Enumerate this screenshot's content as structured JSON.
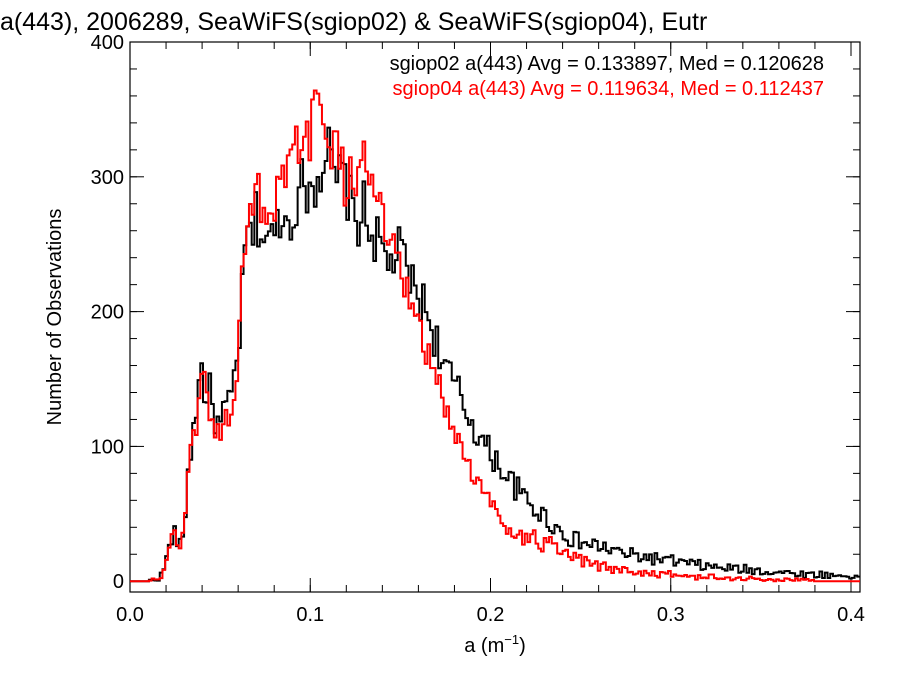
{
  "chart_data": {
    "type": "line",
    "title": "a(443), 2006289, SeaWiFS(sgiop02) & SeaWiFS(sgiop04), Eutr",
    "xlabel": {
      "base": "a (m",
      "sup": "−1",
      "close": ")"
    },
    "ylabel": "Number of Observations",
    "xlim": [
      0.0,
      0.405
    ],
    "ylim": [
      -8,
      400
    ],
    "x_ticks": [
      0.0,
      0.1,
      0.2,
      0.3,
      0.4
    ],
    "x_tick_labels": [
      "0.0",
      "0.1",
      "0.2",
      "0.3",
      "0.4"
    ],
    "y_ticks": [
      0,
      100,
      200,
      300,
      400
    ],
    "y_tick_labels": [
      "0",
      "100",
      "200",
      "300",
      "400"
    ],
    "grid": false,
    "legend_position": "top-right",
    "bin_width": 0.0015,
    "series": [
      {
        "color": "#000000",
        "legend_text": "sgiop02 a(443) Avg = 0.133897, Med = 0.120628",
        "points": [
          [
            0.0,
            0
          ],
          [
            0.01,
            0
          ],
          [
            0.016,
            2
          ],
          [
            0.018,
            6
          ],
          [
            0.02,
            16
          ],
          [
            0.022,
            25
          ],
          [
            0.024,
            38
          ],
          [
            0.026,
            30
          ],
          [
            0.028,
            25
          ],
          [
            0.03,
            40
          ],
          [
            0.032,
            75
          ],
          [
            0.034,
            100
          ],
          [
            0.036,
            125
          ],
          [
            0.038,
            140
          ],
          [
            0.04,
            163
          ],
          [
            0.042,
            132
          ],
          [
            0.044,
            142
          ],
          [
            0.046,
            128
          ],
          [
            0.048,
            118
          ],
          [
            0.05,
            112
          ],
          [
            0.052,
            128
          ],
          [
            0.054,
            125
          ],
          [
            0.056,
            135
          ],
          [
            0.058,
            152
          ],
          [
            0.06,
            170
          ],
          [
            0.062,
            205
          ],
          [
            0.064,
            250
          ],
          [
            0.066,
            258
          ],
          [
            0.068,
            255
          ],
          [
            0.07,
            272
          ],
          [
            0.072,
            262
          ],
          [
            0.074,
            255
          ],
          [
            0.076,
            258
          ],
          [
            0.078,
            248
          ],
          [
            0.08,
            260
          ],
          [
            0.082,
            265
          ],
          [
            0.084,
            278
          ],
          [
            0.086,
            268
          ],
          [
            0.088,
            265
          ],
          [
            0.09,
            272
          ],
          [
            0.092,
            285
          ],
          [
            0.094,
            278
          ],
          [
            0.096,
            305
          ],
          [
            0.098,
            290
          ],
          [
            0.1,
            300
          ],
          [
            0.102,
            285
          ],
          [
            0.104,
            310
          ],
          [
            0.106,
            305
          ],
          [
            0.108,
            315
          ],
          [
            0.11,
            325
          ],
          [
            0.112,
            300
          ],
          [
            0.114,
            295
          ],
          [
            0.116,
            298
          ],
          [
            0.118,
            305
          ],
          [
            0.12,
            290
          ],
          [
            0.122,
            282
          ],
          [
            0.124,
            275
          ],
          [
            0.126,
            262
          ],
          [
            0.128,
            272
          ],
          [
            0.13,
            278
          ],
          [
            0.132,
            262
          ],
          [
            0.134,
            258
          ],
          [
            0.136,
            255
          ],
          [
            0.138,
            250
          ],
          [
            0.14,
            245
          ],
          [
            0.142,
            238
          ],
          [
            0.144,
            235
          ],
          [
            0.146,
            240
          ],
          [
            0.148,
            242
          ],
          [
            0.15,
            245
          ],
          [
            0.152,
            238
          ],
          [
            0.154,
            230
          ],
          [
            0.156,
            222
          ],
          [
            0.158,
            215
          ],
          [
            0.16,
            212
          ],
          [
            0.162,
            208
          ],
          [
            0.164,
            202
          ],
          [
            0.166,
            195
          ],
          [
            0.168,
            186
          ],
          [
            0.17,
            178
          ],
          [
            0.172,
            170
          ],
          [
            0.174,
            162
          ],
          [
            0.176,
            155
          ],
          [
            0.178,
            150
          ],
          [
            0.18,
            145
          ],
          [
            0.182,
            140
          ],
          [
            0.184,
            134
          ],
          [
            0.186,
            128
          ],
          [
            0.188,
            122
          ],
          [
            0.19,
            118
          ],
          [
            0.192,
            112
          ],
          [
            0.194,
            107
          ],
          [
            0.196,
            102
          ],
          [
            0.198,
            98
          ],
          [
            0.2,
            95
          ],
          [
            0.202,
            92
          ],
          [
            0.204,
            88
          ],
          [
            0.206,
            85
          ],
          [
            0.208,
            80
          ],
          [
            0.21,
            76
          ],
          [
            0.212,
            73
          ],
          [
            0.214,
            70
          ],
          [
            0.216,
            66
          ],
          [
            0.218,
            62
          ],
          [
            0.22,
            60
          ],
          [
            0.222,
            57
          ],
          [
            0.224,
            55
          ],
          [
            0.226,
            52
          ],
          [
            0.228,
            50
          ],
          [
            0.23,
            48
          ],
          [
            0.232,
            45
          ],
          [
            0.234,
            43
          ],
          [
            0.236,
            40
          ],
          [
            0.238,
            38
          ],
          [
            0.24,
            36
          ],
          [
            0.242,
            34
          ],
          [
            0.244,
            32
          ],
          [
            0.246,
            31
          ],
          [
            0.248,
            30
          ],
          [
            0.25,
            29
          ],
          [
            0.255,
            27
          ],
          [
            0.26,
            26
          ],
          [
            0.265,
            24
          ],
          [
            0.27,
            22
          ],
          [
            0.275,
            20
          ],
          [
            0.28,
            19
          ],
          [
            0.285,
            18
          ],
          [
            0.29,
            17
          ],
          [
            0.295,
            16
          ],
          [
            0.3,
            15
          ],
          [
            0.305,
            14
          ],
          [
            0.31,
            13
          ],
          [
            0.315,
            12
          ],
          [
            0.32,
            11
          ],
          [
            0.325,
            10
          ],
          [
            0.33,
            10
          ],
          [
            0.335,
            9
          ],
          [
            0.34,
            9
          ],
          [
            0.345,
            8
          ],
          [
            0.35,
            8
          ],
          [
            0.355,
            7
          ],
          [
            0.36,
            7
          ],
          [
            0.365,
            6
          ],
          [
            0.37,
            6
          ],
          [
            0.375,
            5
          ],
          [
            0.38,
            5
          ],
          [
            0.385,
            5
          ],
          [
            0.39,
            4
          ],
          [
            0.395,
            4
          ],
          [
            0.4,
            4
          ],
          [
            0.405,
            3
          ]
        ]
      },
      {
        "color": "#ff0000",
        "legend_text": "sgiop04 a(443) Avg = 0.119634, Med = 0.112437",
        "points": [
          [
            0.0,
            0
          ],
          [
            0.01,
            0
          ],
          [
            0.016,
            2
          ],
          [
            0.018,
            5
          ],
          [
            0.02,
            14
          ],
          [
            0.022,
            24
          ],
          [
            0.024,
            35
          ],
          [
            0.026,
            28
          ],
          [
            0.028,
            24
          ],
          [
            0.03,
            38
          ],
          [
            0.032,
            72
          ],
          [
            0.034,
            108
          ],
          [
            0.036,
            98
          ],
          [
            0.038,
            130
          ],
          [
            0.04,
            155
          ],
          [
            0.042,
            140
          ],
          [
            0.044,
            128
          ],
          [
            0.046,
            122
          ],
          [
            0.048,
            112
          ],
          [
            0.05,
            110
          ],
          [
            0.052,
            115
          ],
          [
            0.054,
            120
          ],
          [
            0.056,
            130
          ],
          [
            0.058,
            148
          ],
          [
            0.06,
            168
          ],
          [
            0.062,
            210
          ],
          [
            0.064,
            268
          ],
          [
            0.066,
            275
          ],
          [
            0.068,
            282
          ],
          [
            0.07,
            295
          ],
          [
            0.072,
            285
          ],
          [
            0.074,
            270
          ],
          [
            0.076,
            272
          ],
          [
            0.078,
            265
          ],
          [
            0.08,
            272
          ],
          [
            0.082,
            285
          ],
          [
            0.084,
            295
          ],
          [
            0.086,
            285
          ],
          [
            0.088,
            300
          ],
          [
            0.09,
            315
          ],
          [
            0.092,
            325
          ],
          [
            0.094,
            318
          ],
          [
            0.096,
            335
          ],
          [
            0.098,
            320
          ],
          [
            0.1,
            335
          ],
          [
            0.102,
            340
          ],
          [
            0.104,
            348
          ],
          [
            0.106,
            342
          ],
          [
            0.108,
            350
          ],
          [
            0.11,
            338
          ],
          [
            0.112,
            325
          ],
          [
            0.114,
            318
          ],
          [
            0.116,
            310
          ],
          [
            0.118,
            300
          ],
          [
            0.12,
            290
          ],
          [
            0.122,
            295
          ],
          [
            0.124,
            300
          ],
          [
            0.126,
            310
          ],
          [
            0.128,
            330
          ],
          [
            0.13,
            305
          ],
          [
            0.132,
            300
          ],
          [
            0.134,
            295
          ],
          [
            0.136,
            290
          ],
          [
            0.138,
            278
          ],
          [
            0.14,
            268
          ],
          [
            0.142,
            260
          ],
          [
            0.144,
            248
          ],
          [
            0.146,
            240
          ],
          [
            0.148,
            232
          ],
          [
            0.15,
            225
          ],
          [
            0.152,
            218
          ],
          [
            0.154,
            210
          ],
          [
            0.156,
            200
          ],
          [
            0.158,
            192
          ],
          [
            0.16,
            185
          ],
          [
            0.162,
            178
          ],
          [
            0.164,
            170
          ],
          [
            0.166,
            163
          ],
          [
            0.168,
            156
          ],
          [
            0.17,
            148
          ],
          [
            0.172,
            140
          ],
          [
            0.174,
            133
          ],
          [
            0.176,
            125
          ],
          [
            0.178,
            118
          ],
          [
            0.18,
            112
          ],
          [
            0.182,
            105
          ],
          [
            0.184,
            98
          ],
          [
            0.186,
            92
          ],
          [
            0.188,
            86
          ],
          [
            0.19,
            80
          ],
          [
            0.192,
            75
          ],
          [
            0.194,
            70
          ],
          [
            0.196,
            66
          ],
          [
            0.198,
            62
          ],
          [
            0.2,
            58
          ],
          [
            0.202,
            54
          ],
          [
            0.204,
            50
          ],
          [
            0.206,
            47
          ],
          [
            0.208,
            44
          ],
          [
            0.21,
            41
          ],
          [
            0.212,
            38
          ],
          [
            0.214,
            36
          ],
          [
            0.216,
            34
          ],
          [
            0.218,
            32
          ],
          [
            0.22,
            32
          ],
          [
            0.222,
            33
          ],
          [
            0.224,
            32
          ],
          [
            0.226,
            30
          ],
          [
            0.228,
            28
          ],
          [
            0.23,
            27
          ],
          [
            0.232,
            28
          ],
          [
            0.234,
            26
          ],
          [
            0.236,
            24
          ],
          [
            0.238,
            22
          ],
          [
            0.24,
            20
          ],
          [
            0.242,
            19
          ],
          [
            0.244,
            18
          ],
          [
            0.246,
            17
          ],
          [
            0.248,
            16
          ],
          [
            0.25,
            15
          ],
          [
            0.255,
            13
          ],
          [
            0.26,
            11
          ],
          [
            0.265,
            10
          ],
          [
            0.27,
            9
          ],
          [
            0.275,
            8
          ],
          [
            0.28,
            7
          ],
          [
            0.285,
            6
          ],
          [
            0.29,
            6
          ],
          [
            0.295,
            5
          ],
          [
            0.3,
            5
          ],
          [
            0.305,
            4
          ],
          [
            0.31,
            4
          ],
          [
            0.315,
            3
          ],
          [
            0.32,
            3
          ],
          [
            0.325,
            3
          ],
          [
            0.33,
            2
          ],
          [
            0.335,
            2
          ],
          [
            0.34,
            2
          ],
          [
            0.345,
            2
          ],
          [
            0.35,
            1
          ],
          [
            0.355,
            1
          ],
          [
            0.36,
            1
          ],
          [
            0.365,
            1
          ],
          [
            0.37,
            1
          ],
          [
            0.375,
            1
          ],
          [
            0.38,
            0
          ],
          [
            0.385,
            0
          ],
          [
            0.39,
            0
          ],
          [
            0.395,
            0
          ],
          [
            0.4,
            0
          ],
          [
            0.405,
            0
          ]
        ]
      }
    ]
  }
}
